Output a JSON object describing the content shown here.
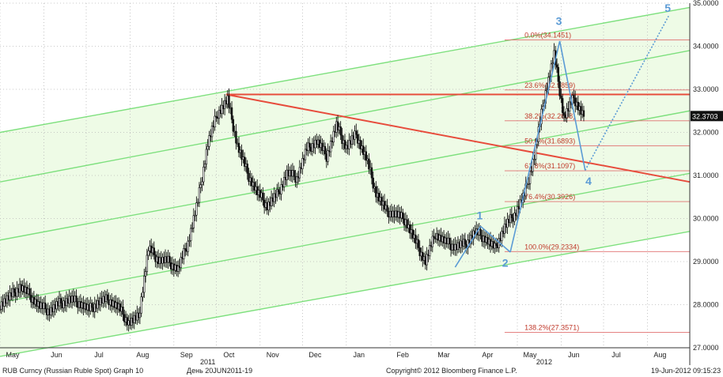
{
  "chart_data": {
    "type": "candlestick",
    "title": "RUB Curncy (Russian Ruble Spot) Graph 10",
    "subtitle": "День 20JUN2011-19",
    "ylim": [
      27.0,
      35.0
    ],
    "y_ticks": [
      "27.0000",
      "28.0000",
      "29.0000",
      "30.0000",
      "31.0000",
      "32.0000",
      "33.0000",
      "34.0000",
      "35.0000"
    ],
    "x_months": [
      "May",
      "Jun",
      "Jul",
      "Aug",
      "Sep",
      "Oct",
      "Nov",
      "Dec",
      "Jan",
      "Feb",
      "Mar",
      "Apr",
      "May",
      "Jun",
      "Jul",
      "Aug"
    ],
    "x_years": [
      "2011",
      "2012"
    ],
    "last_price": "32.3703",
    "grid": true,
    "series": [
      {
        "values": [
          [
            "2011-05-01",
            28.02
          ],
          [
            "2011-05-08",
            28.18
          ],
          [
            "2011-05-15",
            28.42
          ],
          [
            "2011-05-22",
            28.22
          ],
          [
            "2011-05-29",
            27.96
          ],
          [
            "2011-06-05",
            27.86
          ],
          [
            "2011-06-12",
            28.02
          ],
          [
            "2011-06-19",
            28.12
          ],
          [
            "2011-06-26",
            28.05
          ],
          [
            "2011-07-03",
            27.88
          ],
          [
            "2011-07-10",
            28.07
          ],
          [
            "2011-07-17",
            28.12
          ],
          [
            "2011-07-24",
            27.92
          ],
          [
            "2011-07-31",
            27.58
          ],
          [
            "2011-08-07",
            27.7
          ],
          [
            "2011-08-14",
            29.3
          ],
          [
            "2011-08-21",
            29.05
          ],
          [
            "2011-08-28",
            29.0
          ],
          [
            "2011-09-04",
            28.82
          ],
          [
            "2011-09-11",
            29.45
          ],
          [
            "2011-09-18",
            30.4
          ],
          [
            "2011-09-25",
            31.75
          ],
          [
            "2011-10-02",
            32.45
          ],
          [
            "2011-10-09",
            32.75
          ],
          [
            "2011-10-16",
            31.7
          ],
          [
            "2011-10-23",
            31.05
          ],
          [
            "2011-10-30",
            30.6
          ],
          [
            "2011-11-06",
            30.3
          ],
          [
            "2011-11-13",
            30.55
          ],
          [
            "2011-11-20",
            31.05
          ],
          [
            "2011-11-27",
            30.95
          ],
          [
            "2011-12-04",
            31.6
          ],
          [
            "2011-12-11",
            31.8
          ],
          [
            "2011-12-18",
            31.45
          ],
          [
            "2011-12-25",
            32.15
          ],
          [
            "2012-01-01",
            31.65
          ],
          [
            "2012-01-08",
            31.95
          ],
          [
            "2012-01-15",
            31.4
          ],
          [
            "2012-01-22",
            30.6
          ],
          [
            "2012-01-29",
            30.18
          ],
          [
            "2012-02-05",
            30.1
          ],
          [
            "2012-02-12",
            29.95
          ],
          [
            "2012-02-19",
            29.45
          ],
          [
            "2012-02-26",
            29.0
          ],
          [
            "2012-03-04",
            29.65
          ],
          [
            "2012-03-11",
            29.45
          ],
          [
            "2012-03-18",
            29.35
          ],
          [
            "2012-03-25",
            29.4
          ],
          [
            "2012-04-01",
            29.68
          ],
          [
            "2012-04-08",
            29.55
          ],
          [
            "2012-04-15",
            29.3
          ],
          [
            "2012-04-22",
            29.8
          ],
          [
            "2012-04-29",
            30.1
          ],
          [
            "2012-05-06",
            30.55
          ],
          [
            "2012-05-13",
            31.45
          ],
          [
            "2012-05-20",
            32.8
          ],
          [
            "2012-05-27",
            33.8
          ],
          [
            "2012-06-03",
            32.35
          ],
          [
            "2012-06-10",
            32.8
          ],
          [
            "2012-06-17",
            32.37
          ]
        ]
      }
    ],
    "channel_lines": [
      {
        "color": "#7ee07e",
        "points": [
          [
            "2011-05-01",
            32.0
          ],
          [
            "2012-08-31",
            34.9
          ]
        ]
      },
      {
        "color": "#7ee07e",
        "points": [
          [
            "2011-05-01",
            30.85
          ],
          [
            "2012-08-31",
            33.9
          ]
        ]
      },
      {
        "color": "#7ee07e",
        "points": [
          [
            "2011-05-01",
            29.5
          ],
          [
            "2012-08-31",
            32.5
          ]
        ]
      },
      {
        "color": "#7ee07e",
        "points": [
          [
            "2011-05-01",
            28.05
          ],
          [
            "2012-08-31",
            31.05
          ]
        ]
      },
      {
        "color": "#7ee07e",
        "points": [
          [
            "2011-05-01",
            26.8
          ],
          [
            "2012-08-31",
            29.7
          ]
        ]
      }
    ],
    "trend_lines": [
      {
        "color": "#e74c3c",
        "points": [
          [
            "2011-10-08",
            32.88
          ],
          [
            "2012-08-31",
            30.85
          ]
        ]
      },
      {
        "color": "#e74c3c",
        "points": [
          [
            "2011-10-08",
            32.88
          ],
          [
            "2012-08-31",
            32.88
          ]
        ]
      }
    ],
    "fibonacci": [
      {
        "label": "0.0%(34.1451)",
        "value": 34.1451
      },
      {
        "label": "23.6%(32.9859)",
        "value": 32.9859
      },
      {
        "label": "38.2%(32.2688)",
        "value": 32.2688
      },
      {
        "label": "50.0%(31.6893)",
        "value": 31.6893
      },
      {
        "label": "61.8%(31.1097)",
        "value": 31.1097
      },
      {
        "label": "76.4%(30.3926)",
        "value": 30.3926
      },
      {
        "label": "100.0%(29.2334)",
        "value": 29.2334
      },
      {
        "label": "138.2%(27.3571)",
        "value": 27.3571
      }
    ],
    "elliott_waves": {
      "points": [
        [
          "2012-03-18",
          28.87
        ],
        [
          "2012-04-05",
          29.82
        ],
        [
          "2012-04-26",
          29.22
        ],
        [
          "2012-05-31",
          34.12
        ],
        [
          "2012-06-18",
          31.12
        ],
        [
          "2012-08-16",
          34.7
        ]
      ],
      "labels": [
        {
          "text": "1",
          "x": "2012-04-05",
          "y": 29.98
        },
        {
          "text": "2",
          "x": "2012-04-23",
          "y": 28.88
        },
        {
          "text": "3",
          "x": "2012-05-31",
          "y": 34.5
        },
        {
          "text": "4",
          "x": "2012-06-21",
          "y": 30.78
        },
        {
          "text": "5",
          "x": "2012-08-16",
          "y": 34.8
        }
      ]
    }
  },
  "footer": {
    "left": "RUB Curncy (Russian Ruble Spot) Graph 10",
    "mid": "День 20JUN2011-19",
    "copyright": "Copyright© 2012 Bloomberg Finance L.P.",
    "timestamp": "19-Jun-2012 09:15:23"
  },
  "colors": {
    "channel_fill": "#eefbe6",
    "channel_line": "#7ee07e",
    "trend": "#e74c3c",
    "wave": "#5b9bd5",
    "fib_line": "#e07070",
    "candle": "#111111",
    "price_tag_bg": "#111111"
  }
}
